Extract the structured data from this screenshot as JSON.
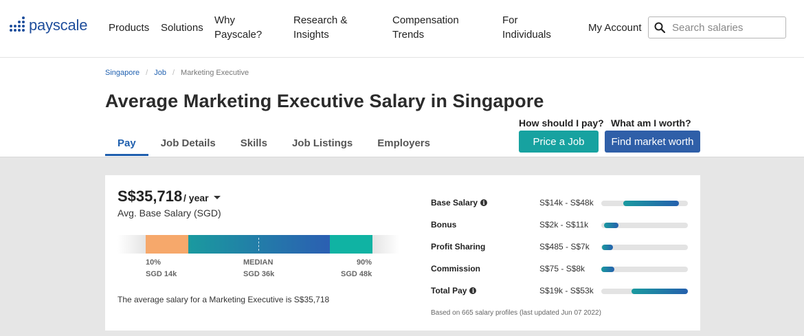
{
  "brand": {
    "name": "payscale",
    "logo_color": "#1f4e9c"
  },
  "nav": {
    "items": [
      {
        "label": "Products"
      },
      {
        "label": "Solutions"
      },
      {
        "label": "Why Payscale?"
      },
      {
        "label": "Research & Insights"
      },
      {
        "label": "Compensation Trends"
      },
      {
        "label": "For Individuals"
      },
      {
        "label": "My Account"
      }
    ],
    "search": {
      "placeholder": "Search salaries",
      "icon": "search-icon"
    }
  },
  "breadcrumb": [
    {
      "label": "Singapore"
    },
    {
      "label": "Job"
    },
    {
      "label": "Marketing Executive"
    }
  ],
  "page_title": "Average Marketing Executive Salary in Singapore",
  "tabs": [
    {
      "label": "Pay",
      "active": true
    },
    {
      "label": "Job Details"
    },
    {
      "label": "Skills"
    },
    {
      "label": "Job Listings"
    },
    {
      "label": "Employers"
    }
  ],
  "cta": {
    "pay_question": "How should I pay?",
    "pay_button": "Price a Job",
    "worth_question": "What am I worth?",
    "worth_button": "Find market worth",
    "colors": {
      "pay": "#17a2a0",
      "worth": "#2f5fa8"
    }
  },
  "salary": {
    "value": "S$35,718",
    "period": "/ year",
    "label": "Avg. Base Salary (SGD)",
    "bar": {
      "p10_label": "10%",
      "p10_value": "SGD 14k",
      "median_label": "MEDIAN",
      "median_value": "SGD 36k",
      "p90_label": "90%",
      "p90_value": "SGD 48k",
      "colors": {
        "low": "#f6a86b",
        "mid_start": "#1a9a9f",
        "mid_end": "#2b5fb2",
        "high": "#10b3a3"
      }
    },
    "description": "The average salary for a Marketing Executive is S$35,718"
  },
  "components": [
    {
      "name": "Base Salary",
      "info": true,
      "range": "S$14k - S$48k",
      "start": 0.25,
      "end": 0.89
    },
    {
      "name": "Bonus",
      "info": false,
      "range": "S$2k - S$11k",
      "start": 0.03,
      "end": 0.2
    },
    {
      "name": "Profit Sharing",
      "info": false,
      "range": "S$485 - S$7k",
      "start": 0.01,
      "end": 0.14
    },
    {
      "name": "Commission",
      "info": false,
      "range": "S$75 - S$8k",
      "start": 0.0,
      "end": 0.15
    },
    {
      "name": "Total Pay",
      "info": true,
      "range": "S$19k - S$53k",
      "start": 0.35,
      "end": 1.0
    }
  ],
  "footnote": "Based on 665 salary profiles (last updated Jun 07 2022)"
}
